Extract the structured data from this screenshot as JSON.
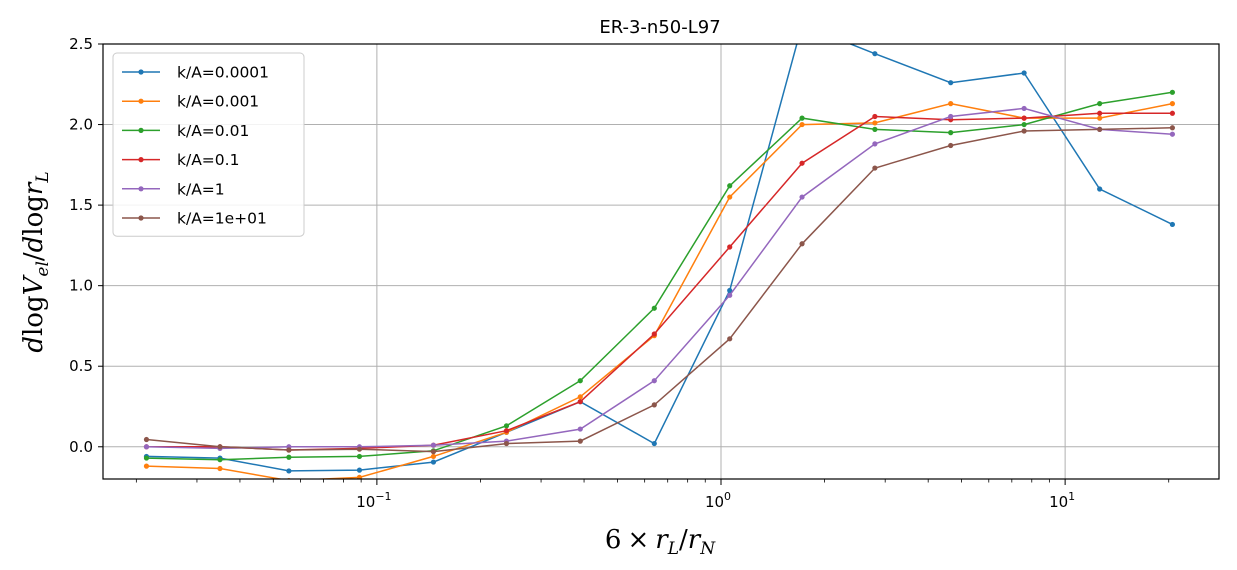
{
  "chart_data": {
    "type": "line",
    "title": "ER-3-n50-L97",
    "xlabel": "6 × r_L/r_N",
    "ylabel": "dlogV_el/dlogr_L",
    "xscale": "log",
    "xlim": [
      0.016,
      28
    ],
    "ylim": [
      -0.2,
      2.5
    ],
    "yticks": [
      "0.0",
      "0.5",
      "1.0",
      "1.5",
      "2.0",
      "2.5"
    ],
    "ytick_values": [
      0,
      0.5,
      1.0,
      1.5,
      2.0,
      2.5
    ],
    "xticks": [
      {
        "value": 0.1,
        "base": "10",
        "exp": "−1"
      },
      {
        "value": 1,
        "base": "10",
        "exp": "0"
      },
      {
        "value": 10,
        "base": "10",
        "exp": "1"
      }
    ],
    "grid": true,
    "legend_position": "top-left",
    "x": [
      0.0214,
      0.035,
      0.0555,
      0.089,
      0.146,
      0.238,
      0.39,
      0.64,
      1.06,
      1.72,
      2.8,
      4.65,
      7.6,
      12.6,
      20.5
    ],
    "series": [
      {
        "name": "k/A=0.0001",
        "color": "#1f77b4",
        "values": [
          -0.06,
          -0.07,
          -0.15,
          -0.145,
          -0.095,
          0.09,
          0.28,
          0.02,
          0.97,
          2.62,
          2.44,
          2.26,
          2.32,
          1.6,
          1.38
        ]
      },
      {
        "name": "k/A=0.001",
        "color": "#ff7f0e",
        "values": [
          -0.12,
          -0.135,
          -0.21,
          -0.19,
          -0.06,
          0.09,
          0.31,
          0.69,
          1.55,
          2.0,
          2.01,
          2.13,
          2.04,
          2.04,
          2.13
        ]
      },
      {
        "name": "k/A=0.01",
        "color": "#2ca02c",
        "values": [
          -0.07,
          -0.08,
          -0.065,
          -0.06,
          -0.025,
          0.13,
          0.41,
          0.86,
          1.62,
          2.04,
          1.97,
          1.95,
          2.0,
          2.13,
          2.2
        ]
      },
      {
        "name": "k/A=0.1",
        "color": "#d62728",
        "values": [
          0.0,
          0.0,
          -0.02,
          -0.01,
          0.01,
          0.1,
          0.28,
          0.7,
          1.24,
          1.76,
          2.05,
          2.03,
          2.04,
          2.07,
          2.07
        ]
      },
      {
        "name": "k/A=1",
        "color": "#9467bd",
        "values": [
          0.0,
          -0.01,
          0.0,
          0.0,
          0.01,
          0.035,
          0.11,
          0.41,
          0.94,
          1.55,
          1.88,
          2.05,
          2.1,
          1.97,
          1.94
        ]
      },
      {
        "name": "k/A=1e+01",
        "color": "#8c564b",
        "values": [
          0.045,
          0.0,
          -0.02,
          -0.015,
          -0.03,
          0.02,
          0.035,
          0.26,
          0.67,
          1.26,
          1.73,
          1.87,
          1.96,
          1.97,
          1.98
        ]
      }
    ]
  }
}
